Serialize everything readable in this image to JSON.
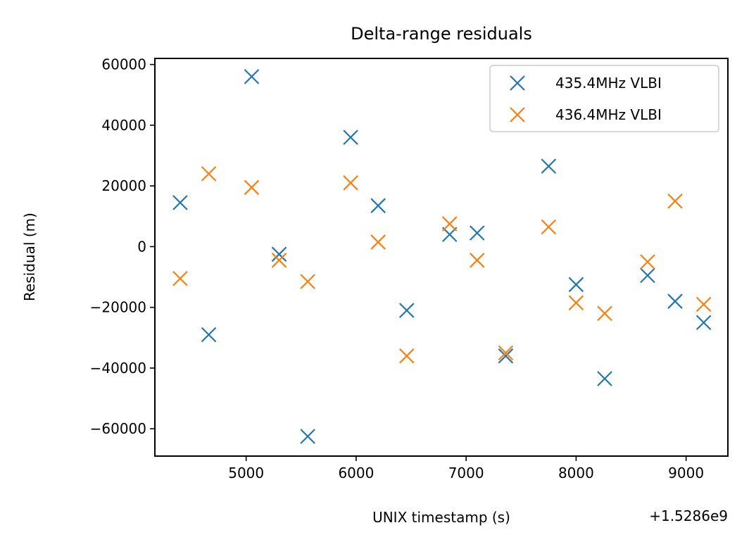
{
  "chart_data": {
    "type": "scatter",
    "title": "Delta-range residuals",
    "xlabel": "UNIX timestamp (s)",
    "ylabel": "Residual (m)",
    "x_offset_label": "+1.5286e9",
    "xlim": [
      4170,
      9380
    ],
    "ylim": [
      -69000,
      62000
    ],
    "xticks": [
      5000,
      6000,
      7000,
      8000,
      9000
    ],
    "xtick_labels": [
      "5000",
      "6000",
      "7000",
      "8000",
      "9000"
    ],
    "yticks": [
      60000,
      40000,
      20000,
      0,
      -20000,
      -40000,
      -60000
    ],
    "ytick_labels": [
      "60000",
      "40000",
      "20000",
      "0",
      "−20000",
      "−40000",
      "−60000"
    ],
    "grid": false,
    "legend_position": "upper right",
    "marker": "x",
    "series": [
      {
        "name": "435.4MHz VLBI",
        "color": "#1f77b4",
        "points": [
          [
            4400,
            14500
          ],
          [
            4660,
            -29000
          ],
          [
            5050,
            56000
          ],
          [
            5300,
            -2500
          ],
          [
            5560,
            -62500
          ],
          [
            5950,
            36000
          ],
          [
            6200,
            13500
          ],
          [
            6460,
            -21000
          ],
          [
            6850,
            4000
          ],
          [
            7100,
            4500
          ],
          [
            7360,
            -36000
          ],
          [
            7750,
            26500
          ],
          [
            8000,
            -12500
          ],
          [
            8260,
            -43500
          ],
          [
            8650,
            -9500
          ],
          [
            8900,
            -18000
          ],
          [
            9160,
            -25000
          ]
        ]
      },
      {
        "name": "436.4MHz VLBI",
        "color": "#ff7f0e",
        "points": [
          [
            4400,
            -10500
          ],
          [
            4660,
            24000
          ],
          [
            5050,
            19500
          ],
          [
            5300,
            -4500
          ],
          [
            5560,
            -11500
          ],
          [
            5950,
            21000
          ],
          [
            6200,
            1500
          ],
          [
            6460,
            -36000
          ],
          [
            6850,
            7500
          ],
          [
            7100,
            -4500
          ],
          [
            7360,
            -35000
          ],
          [
            7750,
            6500
          ],
          [
            8000,
            -18500
          ],
          [
            8260,
            -22000
          ],
          [
            8650,
            -5000
          ],
          [
            8900,
            15000
          ],
          [
            9160,
            -19000
          ]
        ]
      }
    ]
  }
}
